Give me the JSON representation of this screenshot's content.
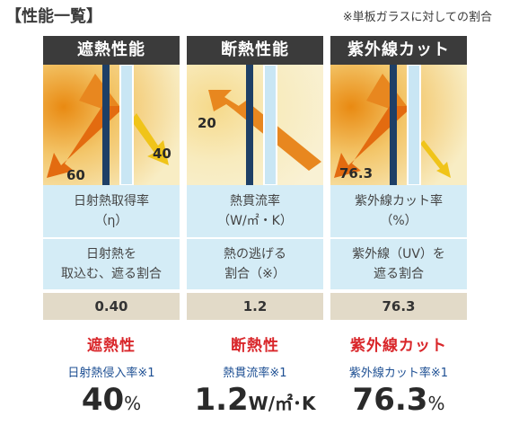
{
  "title": "【性能一覧】",
  "note": "※単板ガラスに対しての割合",
  "columns": [
    {
      "header": "遮熱性能",
      "diagram_labels": [
        "40",
        "60"
      ],
      "row_a": [
        "日射熱取得率",
        "（η）"
      ],
      "row_b": [
        "日射熱を",
        "取込む、遮る割合"
      ],
      "value": "0.40",
      "summary_title": "遮熱性",
      "summary_sub": "日射熱侵入率※1",
      "big_number": "40",
      "big_unit": "%"
    },
    {
      "header": "断熱性能",
      "diagram_labels": [
        "20"
      ],
      "row_a": [
        "熱貫流率",
        "（W/㎡・K）"
      ],
      "row_b": [
        "熱の逃げる",
        "割合（※）"
      ],
      "value": "1.2",
      "summary_title": "断熱性",
      "summary_sub": "熱貫流率※1",
      "big_number": "1.2",
      "big_unit": "W/㎡･K"
    },
    {
      "header": "紫外線カット",
      "diagram_labels": [
        "76.3"
      ],
      "row_a": [
        "紫外線カット率",
        "（%）"
      ],
      "row_b": [
        "紫外線（UV）を",
        "遮る割合"
      ],
      "value": "76.3",
      "summary_title": "紫外線カット",
      "summary_sub": "紫外線カット率※1",
      "big_number": "76.3",
      "big_unit": "%"
    }
  ],
  "colors": {
    "header_bg": "#3b3b3b",
    "row_blue": "#d4ecf6",
    "row_beige": "#e2dac8",
    "summary_red": "#d9262a",
    "summary_blue": "#1d4f93",
    "arrow_orange": "#e8871f",
    "arrow_yellow": "#f0c419",
    "glass": "#c9e6f4"
  }
}
